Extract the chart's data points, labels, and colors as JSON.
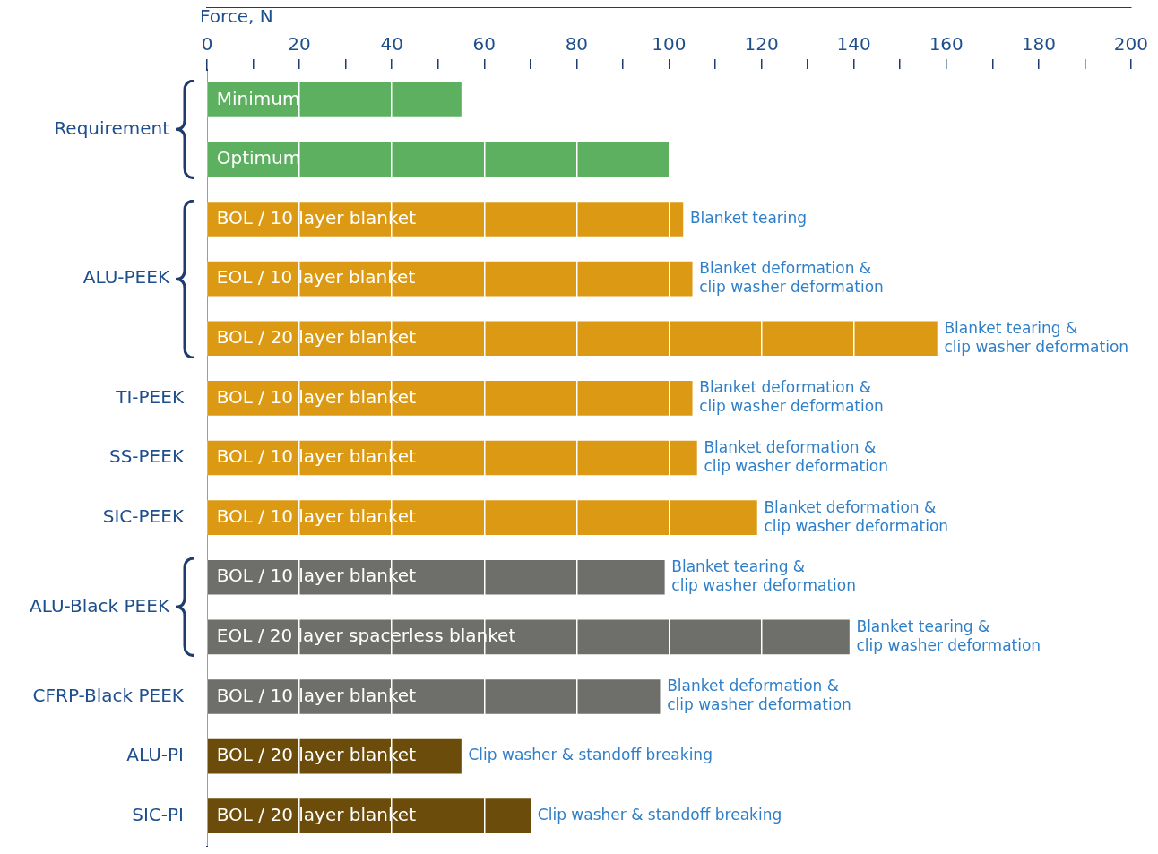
{
  "chart_data": {
    "type": "bar",
    "orientation": "horizontal",
    "xlabel": "Force, N",
    "categories": [
      "Minimum",
      "Optimum",
      "BOL / 10 layer blanket",
      "EOL / 10 layer blanket",
      "BOL / 20 layer blanket",
      "BOL / 10 layer blanket",
      "BOL / 10 layer blanket",
      "BOL / 10 layer blanket",
      "BOL / 10 layer blanket",
      "EOL / 20 layer spacerless blanket",
      "BOL / 10 layer blanket",
      "BOL / 20 layer blanket",
      "BOL / 20 layer blanket"
    ],
    "series": [
      {
        "name": "Requirement",
        "color": "#5cb060",
        "values": [
          55,
          100,
          null,
          null,
          null,
          null,
          null,
          null,
          null,
          null,
          null,
          null,
          null
        ]
      },
      {
        "name": "ALU-PEEK",
        "color": "#dc9a14",
        "values": [
          null,
          null,
          103,
          105,
          158,
          null,
          null,
          null,
          null,
          null,
          null,
          null,
          null
        ]
      },
      {
        "name": "TI-PEEK",
        "color": "#dc9a14",
        "values": [
          null,
          null,
          null,
          null,
          null,
          105,
          null,
          null,
          null,
          null,
          null,
          null,
          null
        ]
      },
      {
        "name": "SS-PEEK",
        "color": "#dc9a14",
        "values": [
          null,
          null,
          null,
          null,
          null,
          null,
          106,
          null,
          null,
          null,
          null,
          null,
          null
        ]
      },
      {
        "name": "SIC-PEEK",
        "color": "#dc9a14",
        "values": [
          null,
          null,
          null,
          null,
          null,
          null,
          null,
          119,
          null,
          null,
          null,
          null,
          null
        ]
      },
      {
        "name": "ALU-Black PEEK",
        "color": "#6e6e6a",
        "values": [
          null,
          null,
          null,
          null,
          null,
          null,
          null,
          null,
          99,
          139,
          null,
          null,
          null
        ]
      },
      {
        "name": "CFRP-Black PEEK",
        "color": "#6e6e6a",
        "values": [
          null,
          null,
          null,
          null,
          null,
          null,
          null,
          null,
          null,
          null,
          98,
          null,
          null
        ]
      },
      {
        "name": "ALU-PI",
        "color": "#6b4c0a",
        "values": [
          null,
          null,
          null,
          null,
          null,
          null,
          null,
          null,
          null,
          null,
          null,
          55,
          null
        ]
      },
      {
        "name": "SIC-PI",
        "color": "#6b4c0a",
        "values": [
          null,
          null,
          null,
          null,
          null,
          null,
          null,
          null,
          null,
          null,
          null,
          null,
          70
        ]
      }
    ],
    "xlim": [
      0,
      200
    ],
    "xticks": [
      0,
      {
        "value": 10,
        "label": null
      },
      20,
      {
        "value": 30,
        "label": null
      },
      40,
      {
        "value": 50,
        "label": null
      },
      60,
      {
        "value": 70,
        "label": null
      },
      80,
      {
        "value": 90,
        "label": null
      },
      100,
      {
        "value": 110,
        "label": null
      },
      120,
      {
        "value": 130,
        "label": null
      },
      140,
      {
        "value": 150,
        "label": null
      },
      160,
      {
        "value": 170,
        "label": null
      },
      180,
      {
        "value": 190,
        "label": null
      },
      200
    ],
    "grid": "x",
    "legend": false,
    "annotations": [
      "Blanket tearing",
      "Blanket deformation &\nclip washer deformation",
      "Blanket tearing &\nclip washer deformation",
      "Blanket deformation &\nclip washer deformation",
      "Blanket deformation &\nclip washer deformation",
      "Blanket deformation &\nclip washer deformation",
      "Blanket tearing &\nclip washer deformation",
      "Blanket tearing &\nclip washer deformation",
      "Blanket deformation &\nclip washer deformation",
      "Clip washer & standoff breaking",
      "Clip washer & standoff breaking"
    ]
  }
}
